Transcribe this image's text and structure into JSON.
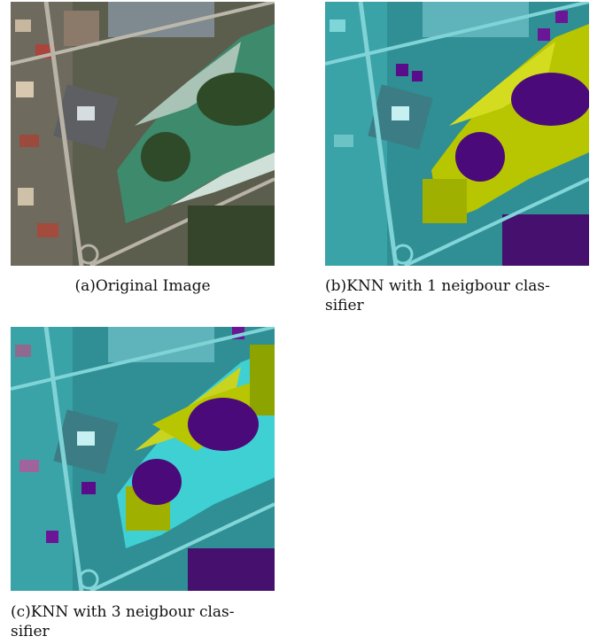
{
  "figure": {
    "panels": [
      {
        "id": "a",
        "caption": "(a)Original Image"
      },
      {
        "id": "b",
        "caption": "(b)KNN with 1 neigbour clas-\nsifier"
      },
      {
        "id": "c",
        "caption": "(c)KNN with 3 neigbour clas-\nsifier"
      }
    ],
    "overlay_colors": {
      "water_class": "#b5c800",
      "vegetation_class": "#4b007a",
      "other_class": "#2ec4c4"
    }
  }
}
